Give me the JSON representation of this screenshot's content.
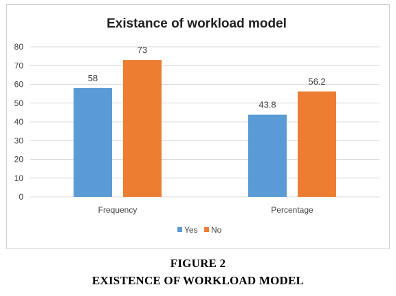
{
  "caption": {
    "figure_label": "FIGURE 2",
    "figure_title": "EXISTENCE OF WORKLOAD MODEL"
  },
  "colors": {
    "yes": "#5b9bd5",
    "no": "#ed7d31",
    "grid": "#d9d9d9",
    "frame": "#d0d0d0"
  },
  "chart_data": {
    "type": "bar",
    "title": "Existance of workload model",
    "xlabel": "",
    "ylabel": "",
    "categories": [
      "Frequency",
      "Percentage"
    ],
    "series": [
      {
        "name": "Yes",
        "values": [
          58,
          43.8
        ],
        "labels": [
          "58",
          "43.8"
        ]
      },
      {
        "name": "No",
        "values": [
          73,
          56.2
        ],
        "labels": [
          "73",
          "56.2"
        ]
      }
    ],
    "ylim": [
      0,
      80
    ],
    "yticks": [
      "0",
      "10",
      "20",
      "30",
      "40",
      "50",
      "60",
      "70",
      "80"
    ],
    "grid": true,
    "legend_position": "bottom"
  }
}
